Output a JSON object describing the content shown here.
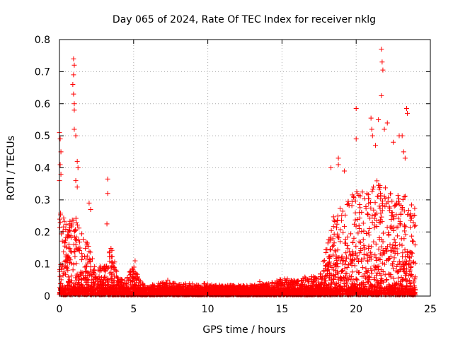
{
  "chart_data": {
    "type": "scatter",
    "title": "Day 065 of 2024, Rate Of TEC Index for receiver nklg",
    "xlabel": "GPS time / hours",
    "ylabel": "ROTI / TECUs",
    "xlim": [
      0,
      25
    ],
    "ylim": [
      0,
      0.8
    ],
    "x_ticks": [
      0,
      5,
      10,
      15,
      20,
      25
    ],
    "x_tick_labels": [
      "0",
      "5",
      "10",
      "15",
      "20",
      "25"
    ],
    "y_ticks": [
      0,
      0.1,
      0.2,
      0.3,
      0.4,
      0.5,
      0.6,
      0.7,
      0.8
    ],
    "y_tick_labels": [
      "0",
      "0.1",
      "0.2",
      "0.3",
      "0.4",
      "0.5",
      "0.6",
      "0.7",
      "0.8"
    ],
    "grid": true,
    "marker": "+",
    "marker_color": "#ff0000",
    "envelope": {
      "x": [
        0,
        0.5,
        1.0,
        1.5,
        2.0,
        2.5,
        3.0,
        3.5,
        4.0,
        4.5,
        5.0,
        5.5,
        6.0,
        7.0,
        8.0,
        9.0,
        10.0,
        11.0,
        12.0,
        13.0,
        14.0,
        15.0,
        16.0,
        17.0,
        17.5,
        18.0,
        18.5,
        19.0,
        19.5,
        20.0,
        20.5,
        21.0,
        21.5,
        22.0,
        22.5,
        23.0,
        23.5,
        24.0
      ],
      "y": [
        0.28,
        0.22,
        0.25,
        0.2,
        0.15,
        0.08,
        0.1,
        0.15,
        0.05,
        0.05,
        0.1,
        0.04,
        0.03,
        0.04,
        0.035,
        0.035,
        0.035,
        0.03,
        0.03,
        0.03,
        0.035,
        0.05,
        0.05,
        0.06,
        0.05,
        0.15,
        0.25,
        0.28,
        0.3,
        0.33,
        0.32,
        0.35,
        0.36,
        0.35,
        0.3,
        0.33,
        0.3,
        0.28
      ]
    },
    "outliers": [
      {
        "x": 0.0,
        "y": 0.51
      },
      {
        "x": 0.05,
        "y": 0.49
      },
      {
        "x": 0.1,
        "y": 0.45
      },
      {
        "x": 0.05,
        "y": 0.41
      },
      {
        "x": 0.1,
        "y": 0.38
      },
      {
        "x": 0.0,
        "y": 0.36
      },
      {
        "x": 0.95,
        "y": 0.74
      },
      {
        "x": 1.0,
        "y": 0.72
      },
      {
        "x": 0.95,
        "y": 0.69
      },
      {
        "x": 0.9,
        "y": 0.66
      },
      {
        "x": 0.95,
        "y": 0.63
      },
      {
        "x": 1.0,
        "y": 0.6
      },
      {
        "x": 1.0,
        "y": 0.58
      },
      {
        "x": 1.0,
        "y": 0.52
      },
      {
        "x": 1.1,
        "y": 0.5
      },
      {
        "x": 1.2,
        "y": 0.42
      },
      {
        "x": 1.25,
        "y": 0.4
      },
      {
        "x": 1.1,
        "y": 0.36
      },
      {
        "x": 1.2,
        "y": 0.34
      },
      {
        "x": 2.0,
        "y": 0.29
      },
      {
        "x": 2.1,
        "y": 0.27
      },
      {
        "x": 3.25,
        "y": 0.365
      },
      {
        "x": 3.25,
        "y": 0.32
      },
      {
        "x": 3.2,
        "y": 0.225
      },
      {
        "x": 18.8,
        "y": 0.43
      },
      {
        "x": 18.8,
        "y": 0.41
      },
      {
        "x": 19.2,
        "y": 0.39
      },
      {
        "x": 18.3,
        "y": 0.4
      },
      {
        "x": 20.0,
        "y": 0.585
      },
      {
        "x": 20.0,
        "y": 0.49
      },
      {
        "x": 21.0,
        "y": 0.555
      },
      {
        "x": 21.05,
        "y": 0.52
      },
      {
        "x": 21.1,
        "y": 0.5
      },
      {
        "x": 21.3,
        "y": 0.47
      },
      {
        "x": 21.5,
        "y": 0.55
      },
      {
        "x": 21.7,
        "y": 0.77
      },
      {
        "x": 21.75,
        "y": 0.73
      },
      {
        "x": 21.8,
        "y": 0.705
      },
      {
        "x": 21.7,
        "y": 0.625
      },
      {
        "x": 21.9,
        "y": 0.52
      },
      {
        "x": 22.1,
        "y": 0.54
      },
      {
        "x": 22.5,
        "y": 0.48
      },
      {
        "x": 22.9,
        "y": 0.5
      },
      {
        "x": 23.1,
        "y": 0.5
      },
      {
        "x": 23.4,
        "y": 0.585
      },
      {
        "x": 23.45,
        "y": 0.57
      },
      {
        "x": 23.2,
        "y": 0.45
      },
      {
        "x": 23.3,
        "y": 0.43
      },
      {
        "x": 13.5,
        "y": 0.045
      },
      {
        "x": 7.3,
        "y": 0.05
      },
      {
        "x": 5.1,
        "y": 0.11
      }
    ]
  }
}
